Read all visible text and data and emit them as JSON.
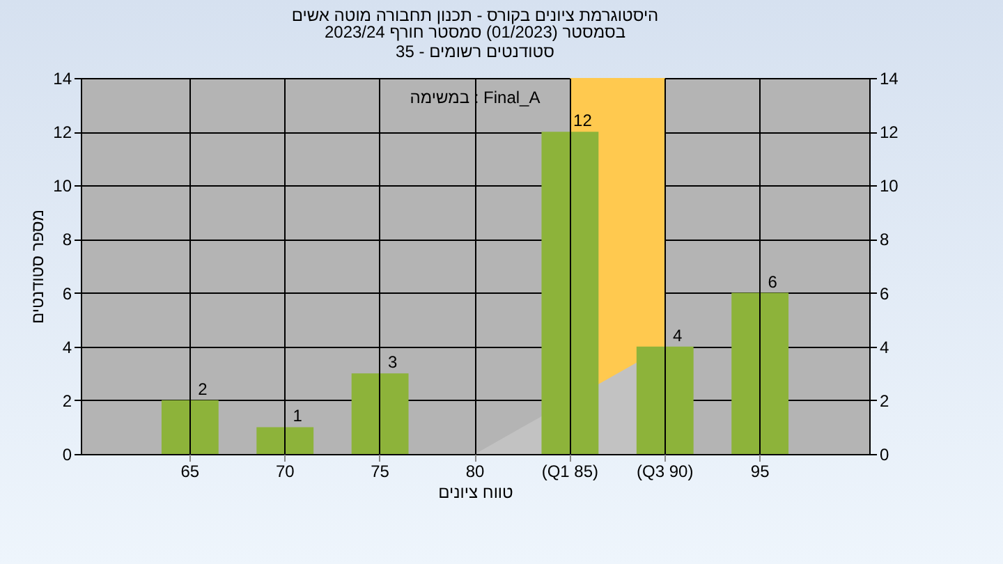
{
  "chart_data": {
    "type": "bar",
    "title": "היסטוגרמת ציונים בקורס - תכנון תחבורה מוטה אשים",
    "subtitle": "בסמסטר  (01/2023)  סמסטר חורף 2023/24\nסטודנטים רשומים - 35",
    "xlabel": "טווח ציונים",
    "ylabel": "מספר סטודנטים",
    "annotations": [
      "במשימה : Final_A"
    ],
    "categories": [
      "65",
      "70",
      "75",
      "80",
      "(Q1 85)",
      "(Q3 90)",
      "95"
    ],
    "series": [
      {
        "type": "area",
        "color": "#c2c2c2",
        "values": [
          null,
          null,
          null,
          0,
          null,
          4,
          null
        ]
      },
      {
        "color": "#8db33a",
        "values": [
          2,
          1,
          3,
          0,
          12,
          4,
          6
        ],
        "value_labels": [
          "2",
          "1",
          "3",
          null,
          "12",
          "4",
          "6"
        ]
      }
    ],
    "ylim": [
      0,
      14
    ],
    "yticks": [
      0,
      2,
      4,
      6,
      8,
      10,
      12,
      14
    ],
    "y2lim": [
      0,
      14
    ],
    "y2ticks": [
      0,
      2,
      4,
      6,
      8,
      10,
      12,
      14
    ],
    "grid": true,
    "bands": [
      {
        "axis": "x",
        "from": "(Q1 85)",
        "to": "(Q3 90)",
        "color": "#ffc94f"
      }
    ]
  }
}
